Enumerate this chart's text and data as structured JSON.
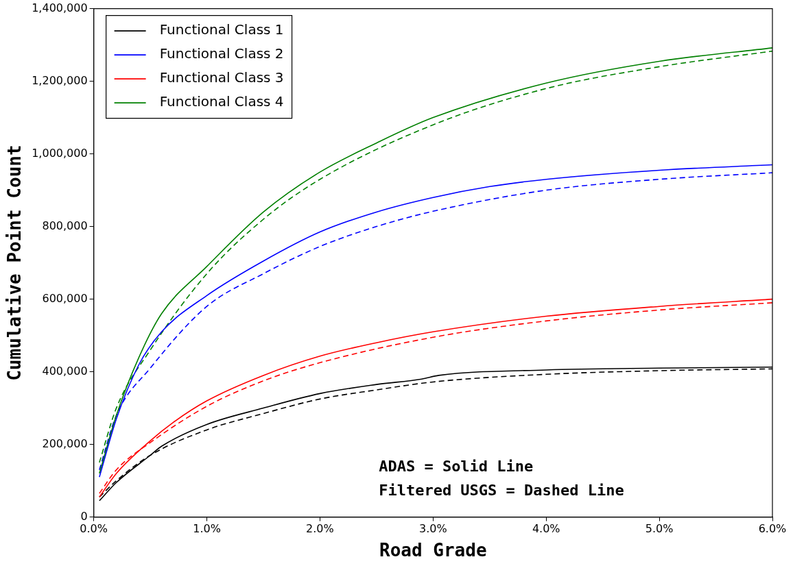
{
  "chart_data": {
    "type": "line",
    "xlabel": "Road Grade",
    "ylabel": "Cumulative Point Count",
    "xlim": [
      0,
      6
    ],
    "ylim": [
      0,
      1400000
    ],
    "xticks": [
      {
        "value": 0,
        "label": "0.0%"
      },
      {
        "value": 1,
        "label": "1.0%"
      },
      {
        "value": 2,
        "label": "2.0%"
      },
      {
        "value": 3,
        "label": "3.0%"
      },
      {
        "value": 4,
        "label": "4.0%"
      },
      {
        "value": 5,
        "label": "5.0%"
      },
      {
        "value": 6,
        "label": "6.0%"
      }
    ],
    "yticks": [
      {
        "value": 0,
        "label": "0"
      },
      {
        "value": 200000,
        "label": "200,000"
      },
      {
        "value": 400000,
        "label": "400,000"
      },
      {
        "value": 600000,
        "label": "600,000"
      },
      {
        "value": 800000,
        "label": "800,000"
      },
      {
        "value": 1000000,
        "label": "1,000,000"
      },
      {
        "value": 1200000,
        "label": "1,200,000"
      },
      {
        "value": 1400000,
        "label": "1,400,000"
      }
    ],
    "grid": false,
    "legend": "top left",
    "marker": "none",
    "annotations": [
      "ADAS = Solid Line",
      "Filtered USGS = Dashed Line"
    ],
    "series": [
      {
        "name": "Functional Class 1",
        "color": "#000000",
        "line_style": "solid",
        "x": [
          0.05,
          0.2,
          0.5,
          0.6,
          1.0,
          1.5,
          2.0,
          2.5,
          2.9,
          3.05,
          4.0,
          5.0,
          6.0
        ],
        "values": [
          45000,
          95000,
          170000,
          195000,
          255000,
          300000,
          340000,
          365000,
          380000,
          390000,
          405000,
          410000,
          413000
        ]
      },
      {
        "name": "Functional Class 2",
        "color": "#0000ff",
        "line_style": "solid",
        "x": [
          0.05,
          0.2,
          0.4,
          0.6,
          1.0,
          1.5,
          2.0,
          2.5,
          3.0,
          3.5,
          4.0,
          5.0,
          6.0
        ],
        "values": [
          110000,
          270000,
          420000,
          510000,
          610000,
          705000,
          785000,
          840000,
          880000,
          910000,
          930000,
          955000,
          970000
        ]
      },
      {
        "name": "Functional Class 3",
        "color": "#ff0000",
        "line_style": "solid",
        "x": [
          0.05,
          0.2,
          0.5,
          0.7,
          1.0,
          1.5,
          2.0,
          2.5,
          3.0,
          4.0,
          5.0,
          6.0
        ],
        "values": [
          55000,
          120000,
          210000,
          260000,
          320000,
          390000,
          443000,
          480000,
          510000,
          553000,
          580000,
          600000
        ]
      },
      {
        "name": "Functional Class 4",
        "color": "#008000",
        "line_style": "solid",
        "x": [
          0.05,
          0.2,
          0.4,
          0.6,
          1.0,
          1.5,
          2.0,
          2.5,
          3.0,
          4.0,
          5.0,
          6.0
        ],
        "values": [
          120000,
          280000,
          440000,
          560000,
          690000,
          840000,
          950000,
          1030000,
          1100000,
          1195000,
          1255000,
          1292000
        ]
      },
      {
        "color": "#000000",
        "line_style": "dashed",
        "x": [
          0.05,
          0.2,
          0.5,
          1.0,
          1.5,
          2.0,
          2.5,
          3.0,
          4.0,
          5.0,
          6.0
        ],
        "values": [
          55000,
          100000,
          170000,
          240000,
          285000,
          325000,
          350000,
          372000,
          393000,
          403000,
          408000
        ]
      },
      {
        "color": "#0000ff",
        "line_style": "dashed",
        "x": [
          0.05,
          0.2,
          0.5,
          1.0,
          1.5,
          2.0,
          2.5,
          3.0,
          4.0,
          5.0,
          6.0
        ],
        "values": [
          130000,
          280000,
          410000,
          580000,
          670000,
          745000,
          800000,
          842000,
          900000,
          930000,
          948000
        ]
      },
      {
        "color": "#ff0000",
        "line_style": "dashed",
        "x": [
          0.05,
          0.2,
          0.5,
          1.0,
          1.5,
          2.0,
          3.0,
          4.0,
          5.0,
          6.0
        ],
        "values": [
          65000,
          130000,
          205000,
          305000,
          375000,
          425000,
          495000,
          540000,
          570000,
          590000
        ]
      },
      {
        "color": "#008000",
        "line_style": "dashed",
        "x": [
          0.05,
          0.2,
          0.5,
          1.0,
          1.5,
          2.0,
          3.0,
          4.0,
          5.0,
          6.0
        ],
        "values": [
          150000,
          300000,
          460000,
          670000,
          820000,
          930000,
          1080000,
          1180000,
          1240000,
          1283000
        ]
      }
    ]
  }
}
